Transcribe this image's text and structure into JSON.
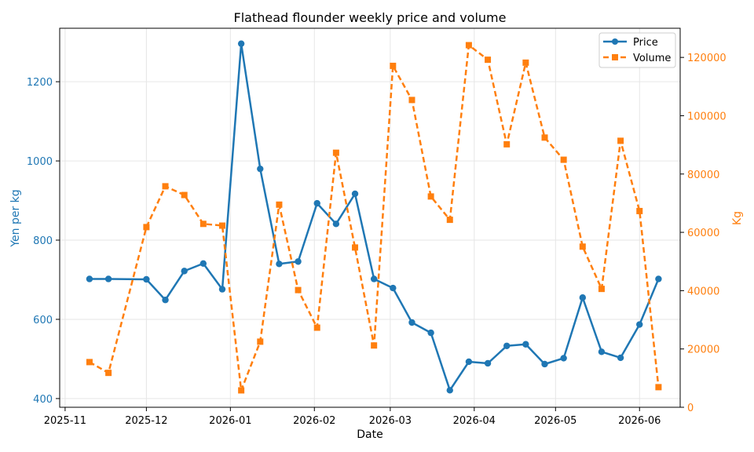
{
  "chart_data": {
    "type": "line",
    "title": "Flathead flounder weekly price and volume",
    "xlabel": "Date",
    "ylabel_left": "Yen per kg",
    "ylabel_right": "Kg",
    "grid": true,
    "legend_position": "top-right",
    "x_ticks": [
      "2025-11",
      "2025-12",
      "2026-01",
      "2026-02",
      "2026-03",
      "2026-04",
      "2026-05",
      "2026-06"
    ],
    "y_left_ticks": [
      400,
      600,
      800,
      1000,
      1200
    ],
    "y_right_ticks": [
      0,
      20000,
      40000,
      60000,
      80000,
      100000,
      120000
    ],
    "x_range": [
      "2025-10-30",
      "2026-06-16"
    ],
    "y_left_range": [
      378,
      1335
    ],
    "y_right_range": [
      0,
      130000
    ],
    "colors": {
      "price": "#1f77b4",
      "volume": "#ff7f0e"
    },
    "dates": [
      "2025-11-10",
      "2025-11-17",
      "2025-12-01",
      "2025-12-08",
      "2025-12-15",
      "2025-12-22",
      "2025-12-29",
      "2026-01-05",
      "2026-01-12",
      "2026-01-19",
      "2026-01-26",
      "2026-02-02",
      "2026-02-09",
      "2026-02-16",
      "2026-02-23",
      "2026-03-02",
      "2026-03-09",
      "2026-03-16",
      "2026-03-23",
      "2026-03-30",
      "2026-04-06",
      "2026-04-13",
      "2026-04-20",
      "2026-04-27",
      "2026-05-04",
      "2026-05-11",
      "2026-05-18",
      "2026-05-25",
      "2026-06-01",
      "2026-06-08"
    ],
    "series": [
      {
        "name": "Price",
        "axis": "left",
        "style": "solid",
        "marker": "circle",
        "values": [
          702,
          702,
          701,
          649,
          722,
          741,
          676,
          1296,
          980,
          740,
          746,
          893,
          841,
          917,
          702,
          679,
          592,
          566,
          421,
          493,
          489,
          533,
          537,
          487,
          502,
          655,
          518,
          503,
          587,
          702
        ]
      },
      {
        "name": "Volume",
        "axis": "right",
        "style": "dashed",
        "marker": "square",
        "values": [
          15500,
          11800,
          61800,
          75800,
          72800,
          62900,
          62300,
          5800,
          22500,
          69500,
          40200,
          27300,
          87300,
          54800,
          21200,
          117100,
          105400,
          72300,
          64300,
          124200,
          119200,
          90200,
          118200,
          92500,
          84900,
          55100,
          40600,
          91400,
          67300,
          6900
        ]
      }
    ]
  }
}
